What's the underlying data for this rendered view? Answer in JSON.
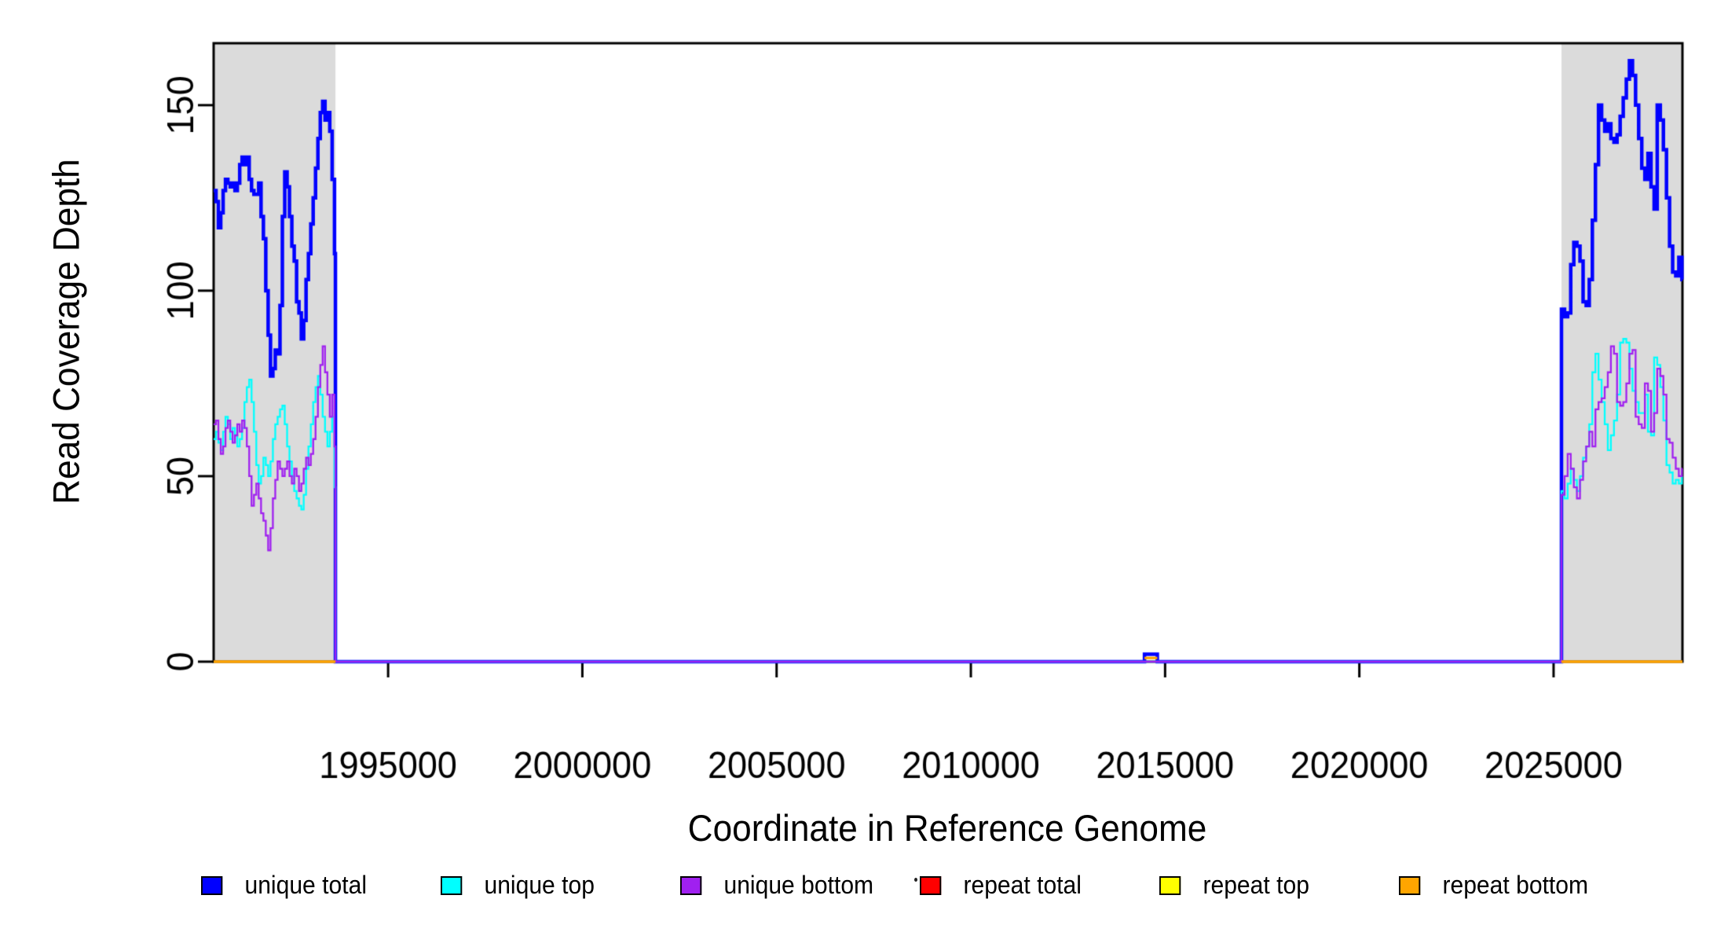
{
  "chart_data": {
    "type": "line",
    "step": true,
    "title": "",
    "xlabel": "Coordinate in Reference Genome",
    "ylabel": "Read Coverage Depth",
    "xlim": [
      1990509,
      2028317
    ],
    "ylim": [
      0,
      166.7
    ],
    "grid": false,
    "background_color": "#FFFFFF",
    "box_color": "#000000",
    "xticks": {
      "values": [
        1995000,
        2000000,
        2005000,
        2010000,
        2015000,
        2020000,
        2025000
      ],
      "labels": [
        "1995000",
        "2000000",
        "2005000",
        "2010000",
        "2015000",
        "2020000",
        "2025000"
      ]
    },
    "yticks": {
      "values": [
        0,
        50,
        100,
        150
      ],
      "labels": [
        "0",
        "50",
        "100",
        "150"
      ]
    },
    "shaded_regions": [
      {
        "x0": 1990509,
        "x1": 1993644,
        "color": "#DBDBDB"
      },
      {
        "x0": 2025203,
        "x1": 2028317,
        "color": "#DBDBDB"
      }
    ],
    "series": [
      {
        "name": "unique total",
        "color": "#0000FF",
        "line_width": 4.5,
        "join": true,
        "xend": 2028317,
        "segments": [
          {
            "x0": 1990509,
            "dx": 61,
            "values": [
              127,
              124,
              117,
              121,
              127,
              130,
              129,
              128,
              129,
              127,
              129,
              134,
              136,
              134,
              136,
              130,
              127,
              126,
              126,
              129,
              120,
              114,
              100,
              88,
              77,
              79,
              84,
              83,
              96,
              120,
              132,
              128,
              120,
              112,
              108,
              97,
              94,
              87,
              92,
              103,
              110,
              118,
              125,
              133,
              141,
              148,
              151,
              146,
              148,
              143,
              130,
              110
            ]
          },
          {
            "points": [
              [
                1993644,
                0
              ],
              [
                2014470,
                2
              ],
              [
                2014800,
                0
              ]
            ]
          },
          {
            "x0": 2025203,
            "dx": 79.5,
            "values": [
              95,
              93,
              94,
              107,
              113,
              112,
              108,
              97,
              96,
              103,
              119,
              134,
              150,
              146,
              143,
              145,
              141,
              140,
              142,
              147,
              152,
              157,
              162,
              158,
              150,
              141,
              133,
              130,
              137,
              128,
              122,
              150,
              146,
              138,
              125,
              112,
              105,
              104,
              109,
              103
            ]
          }
        ]
      },
      {
        "name": "unique top",
        "color": "#00FFFF",
        "line_width": 2.3,
        "join": true,
        "xend": 2028317,
        "segments": [
          {
            "x0": 1990509,
            "dx": 61,
            "values": [
              60,
              62,
              59,
              57,
              62,
              66,
              64,
              60,
              63,
              61,
              58,
              60,
              63,
              70,
              74,
              76,
              70,
              62,
              53,
              48,
              50,
              55,
              53,
              50,
              54,
              60,
              64,
              66,
              68,
              69,
              64,
              58,
              54,
              50,
              46,
              44,
              42,
              41,
              45,
              52,
              58,
              64,
              70,
              74,
              77,
              72,
              66,
              62,
              58,
              62,
              66,
              47
            ]
          },
          {
            "points": [
              [
                1993644,
                0
              ]
            ]
          },
          {
            "x0": 2025203,
            "dx": 79.5,
            "values": [
              46,
              44,
              48,
              52,
              49,
              46,
              50,
              55,
              58,
              64,
              78,
              83,
              76,
              70,
              64,
              57,
              61,
              65,
              72,
              86,
              87,
              86,
              79,
              73,
              70,
              67,
              67,
              72,
              62,
              61,
              82,
              80,
              74,
              65,
              53,
              51,
              48,
              49,
              48,
              50
            ]
          }
        ]
      },
      {
        "name": "unique bottom",
        "color": "#A020F0",
        "line_width": 2.3,
        "join": true,
        "xend": 2028317,
        "segments": [
          {
            "x0": 1990509,
            "dx": 61,
            "values": [
              64,
              65,
              60,
              56,
              58,
              63,
              65,
              62,
              59,
              61,
              64,
              62,
              65,
              63,
              58,
              50,
              42,
              45,
              48,
              44,
              40,
              38,
              34,
              30,
              36,
              44,
              49,
              54,
              52,
              50,
              52,
              54,
              50,
              48,
              52,
              50,
              46,
              48,
              52,
              55,
              53,
              56,
              60,
              66,
              74,
              80,
              85,
              78,
              72,
              66,
              72,
              58
            ]
          },
          {
            "points": [
              [
                1993644,
                0
              ]
            ]
          },
          {
            "x0": 2025203,
            "dx": 79.5,
            "values": [
              45,
              50,
              56,
              52,
              47,
              44,
              49,
              54,
              58,
              62,
              58,
              68,
              70,
              71,
              74,
              78,
              85,
              83,
              70,
              69,
              70,
              75,
              83,
              84,
              66,
              64,
              63,
              75,
              73,
              62,
              67,
              79,
              77,
              72,
              60,
              59,
              55,
              52,
              50,
              52
            ]
          }
        ]
      },
      {
        "name": "repeat total",
        "color": "#FF0000",
        "line_width": 2.3,
        "join": false,
        "segments": [
          {
            "points": [
              [
                1990509,
                0
              ],
              [
                1993644,
                0
              ]
            ]
          },
          {
            "points": [
              [
                2025203,
                0
              ],
              [
                2028317,
                0
              ]
            ]
          }
        ]
      },
      {
        "name": "repeat top",
        "color": "#FFFF00",
        "line_width": 2.3,
        "join": false,
        "segments": [
          {
            "points": [
              [
                1990509,
                0
              ],
              [
                1993644,
                0
              ]
            ]
          },
          {
            "points": [
              [
                2025203,
                0
              ],
              [
                2028317,
                0
              ]
            ]
          }
        ]
      },
      {
        "name": "repeat bottom",
        "color": "#FFA500",
        "line_width": 3.2,
        "join": false,
        "segments": [
          {
            "points": [
              [
                1990509,
                0
              ],
              [
                1993644,
                0
              ]
            ]
          },
          {
            "points": [
              [
                2014470,
                1
              ],
              [
                2014800,
                1
              ]
            ]
          },
          {
            "points": [
              [
                2025203,
                0
              ],
              [
                2028317,
                0
              ]
            ]
          }
        ]
      }
    ],
    "legend": {
      "position": "bottom",
      "items": [
        {
          "label": "unique total",
          "color": "#0000FF"
        },
        {
          "label": "unique top",
          "color": "#00FFFF"
        },
        {
          "label": "unique bottom",
          "color": "#A020F0"
        },
        {
          "label": "repeat total",
          "color": "#FF0000"
        },
        {
          "label": "repeat top",
          "color": "#FFFF00"
        },
        {
          "label": "repeat bottom",
          "color": "#FFA500"
        }
      ]
    }
  }
}
